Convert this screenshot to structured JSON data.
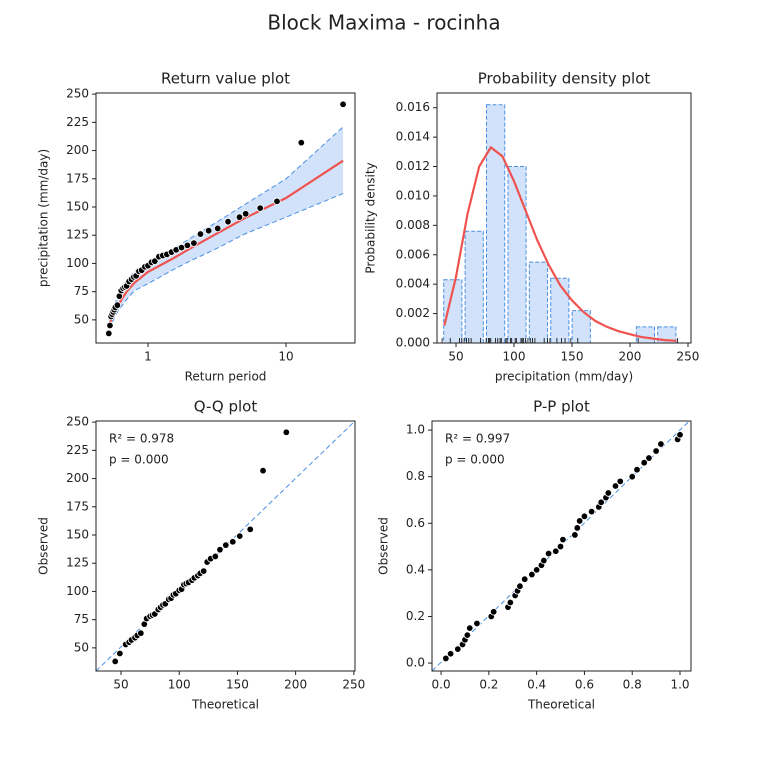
{
  "title": "Block Maxima - rocinha",
  "chart_data": [
    {
      "type": "line",
      "title": "Return value plot",
      "xlabel": "Return period",
      "ylabel": "precipitation (mm/day)",
      "xscale": "log",
      "xlim": [
        0.42,
        31.6
      ],
      "ylim": [
        29.5,
        251
      ],
      "xticks": [
        1,
        10
      ],
      "yticks": [
        50,
        75,
        100,
        125,
        150,
        175,
        200,
        225,
        250
      ],
      "x": [
        0.52,
        0.6,
        0.7,
        0.8,
        1,
        1.5,
        2,
        3,
        5,
        10,
        25.9
      ],
      "line": {
        "color": "#ef5350",
        "values": [
          45,
          62,
          75,
          83,
          92.5,
          104,
          113,
          125,
          140,
          158,
          191
        ]
      },
      "band": {
        "color": "#d2e2fb",
        "edge": "#4a90e2",
        "lower": [
          42,
          57,
          68,
          76,
          82,
          94,
          102,
          112,
          126,
          141,
          162
        ],
        "upper": [
          50,
          70,
          85,
          93,
          100,
          112,
          122,
          135,
          152,
          175,
          221
        ]
      },
      "points": {
        "color": "#000000",
        "x": [
          0.52,
          0.53,
          0.54,
          0.55,
          0.56,
          0.57,
          0.58,
          0.6,
          0.62,
          0.64,
          0.66,
          0.68,
          0.7,
          0.73,
          0.76,
          0.79,
          0.82,
          0.86,
          0.9,
          0.95,
          1.0,
          1.06,
          1.12,
          1.2,
          1.28,
          1.37,
          1.48,
          1.6,
          1.75,
          1.93,
          2.15,
          2.4,
          2.75,
          3.2,
          3.8,
          4.6,
          5.1,
          6.5,
          8.6,
          12.9,
          25.9
        ],
        "y": [
          38,
          45,
          53,
          55,
          57,
          59,
          61,
          63,
          71,
          76,
          78,
          79,
          80,
          84,
          86,
          88,
          89,
          93,
          94,
          97,
          98,
          101,
          102,
          106,
          107,
          108,
          110,
          112,
          114,
          116,
          118,
          126,
          129,
          131,
          137,
          141,
          144,
          149,
          155,
          207,
          241
        ]
      }
    },
    {
      "type": "histogram",
      "title": "Probability density plot",
      "xlabel": "precipitation (mm/day)",
      "ylabel": "Probability density",
      "xlim": [
        33.6,
        252.6
      ],
      "ylim": [
        0,
        0.017
      ],
      "xticks": [
        50,
        100,
        150,
        200,
        250
      ],
      "yticks": [
        {
          "value": 0,
          "label": "0.000"
        },
        0.002,
        0.004,
        0.006,
        0.008,
        {
          "value": 0.01,
          "label": "0.010"
        },
        0.012,
        0.014,
        0.016
      ],
      "bins": [
        38,
        56.5,
        74.9,
        93.4,
        111.8,
        130.3,
        148.7,
        167.2,
        185.6,
        204.1,
        222.5,
        241
      ],
      "values": [
        0.0043,
        0.0076,
        0.0162,
        0.012,
        0.0055,
        0.0044,
        0.0022,
        0,
        0,
        0.0011,
        0.0011
      ],
      "color": "#d2e2fb",
      "edge": "#4a90e2",
      "curve": {
        "color": "#ef5350",
        "x": [
          40,
          50,
          60,
          70,
          80,
          90,
          100,
          110,
          120,
          130,
          140,
          150,
          160,
          170,
          180,
          190,
          200,
          210,
          220,
          230,
          240
        ],
        "values": [
          0.0012,
          0.0045,
          0.0088,
          0.012,
          0.0133,
          0.0127,
          0.011,
          0.009,
          0.007,
          0.0053,
          0.0039,
          0.0029,
          0.0021,
          0.0015,
          0.0011,
          0.0008,
          0.0006,
          0.0004,
          0.0003,
          0.0002,
          0.00015
        ]
      }
    },
    {
      "type": "scatter",
      "title": "Q-Q plot",
      "xlabel": "Theoretical",
      "ylabel": "Observed",
      "xlim": [
        28.5,
        251
      ],
      "ylim": [
        29.5,
        251
      ],
      "xticks": [
        50,
        100,
        150,
        200,
        250
      ],
      "yticks": [
        50,
        75,
        100,
        125,
        150,
        175,
        200,
        225,
        250
      ],
      "annotations": [
        "R² = 0.978",
        "p = 0.000"
      ],
      "x": [
        45,
        49,
        54,
        57,
        59,
        62,
        64,
        67,
        70,
        72,
        75,
        77,
        79,
        82,
        84,
        86,
        88,
        91,
        93,
        95,
        97,
        100,
        102,
        104,
        106,
        108,
        111,
        113,
        116,
        118,
        121,
        124,
        127,
        131,
        135,
        140,
        146,
        152,
        161,
        172,
        192
      ],
      "y": [
        38,
        45,
        53,
        55,
        57,
        59,
        61,
        63,
        71,
        76,
        78,
        79,
        80,
        84,
        86,
        88,
        89,
        93,
        94,
        97,
        98,
        101,
        102,
        106,
        107,
        108,
        110,
        112,
        114,
        116,
        118,
        126,
        129,
        131,
        137,
        141,
        144,
        149,
        155,
        207,
        241
      ]
    },
    {
      "type": "scatter",
      "title": "P-P plot",
      "xlabel": "Theoretical",
      "ylabel": "Observed",
      "xlim": [
        -0.038,
        1.046
      ],
      "ylim": [
        -0.034,
        1.039
      ],
      "xticks": [
        {
          "value": 0,
          "label": "0.0"
        },
        0.2,
        0.4,
        0.6,
        0.8,
        {
          "value": 1,
          "label": "1.0"
        }
      ],
      "yticks": [
        {
          "value": 0,
          "label": "0.0"
        },
        0.2,
        0.4,
        0.6,
        0.8,
        {
          "value": 1,
          "label": "1.0"
        }
      ],
      "annotations": [
        "R² = 0.997",
        "p = 0.000"
      ],
      "x": [
        0.02,
        0.04,
        0.07,
        0.09,
        0.1,
        0.11,
        0.12,
        0.15,
        0.21,
        0.22,
        0.28,
        0.29,
        0.31,
        0.32,
        0.33,
        0.35,
        0.38,
        0.4,
        0.42,
        0.43,
        0.45,
        0.48,
        0.5,
        0.51,
        0.56,
        0.57,
        0.58,
        0.6,
        0.63,
        0.66,
        0.67,
        0.69,
        0.7,
        0.73,
        0.75,
        0.8,
        0.82,
        0.85,
        0.87,
        0.9,
        0.92,
        0.99,
        1.0
      ],
      "y": [
        0.02,
        0.04,
        0.06,
        0.08,
        0.1,
        0.12,
        0.15,
        0.17,
        0.2,
        0.22,
        0.24,
        0.26,
        0.29,
        0.31,
        0.33,
        0.36,
        0.38,
        0.4,
        0.42,
        0.44,
        0.47,
        0.48,
        0.5,
        0.53,
        0.55,
        0.58,
        0.61,
        0.63,
        0.65,
        0.67,
        0.69,
        0.71,
        0.73,
        0.76,
        0.78,
        0.8,
        0.83,
        0.86,
        0.88,
        0.91,
        0.94,
        0.96,
        0.98
      ]
    }
  ]
}
